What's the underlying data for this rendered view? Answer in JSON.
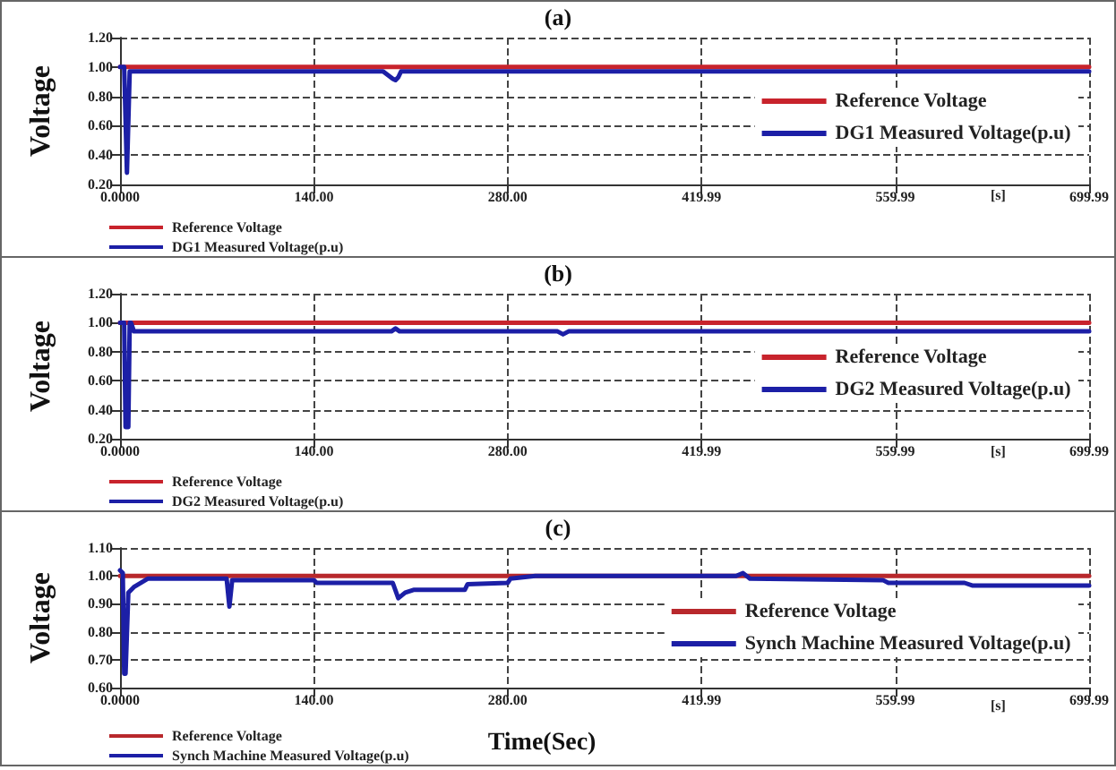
{
  "chart_data": [
    {
      "type": "line",
      "title": "(a)",
      "ylabel": "Voltage",
      "annotations": [
        "[s]"
      ],
      "xlim": [
        0,
        699.99
      ],
      "xticks": [
        {
          "value": 0,
          "label": "0.0000"
        },
        {
          "value": 140,
          "label": "140.00"
        },
        {
          "value": 280,
          "label": "280.00"
        },
        419.99,
        559.99,
        699.99
      ],
      "ylim": [
        0.2,
        1.2
      ],
      "yticks": [
        {
          "value": 0.2,
          "label": "0.20"
        },
        {
          "value": 0.4,
          "label": "0.40"
        },
        {
          "value": 0.6,
          "label": "0.60"
        },
        {
          "value": 0.8,
          "label": "0.80"
        },
        {
          "value": 1.0,
          "label": "1.00"
        },
        {
          "value": 1.2,
          "label": "1.20"
        }
      ],
      "grid": true,
      "legend": "right",
      "marker": "none",
      "line_style": "solid",
      "series": [
        {
          "name": "Reference Voltage",
          "color": "#c8232c",
          "x": [
            0,
            699.99
          ],
          "values": [
            1.0,
            1.0
          ]
        },
        {
          "name": "DG1 Measured Voltage(p.u)",
          "color": "#1c1fa6",
          "x": [
            0,
            3,
            5,
            7,
            10,
            190,
            197,
            199,
            201,
            203,
            699.99
          ],
          "values": [
            1.0,
            1.0,
            0.28,
            0.97,
            0.97,
            0.97,
            0.92,
            0.91,
            0.93,
            0.97,
            0.97
          ]
        }
      ]
    },
    {
      "type": "line",
      "title": "(b)",
      "ylabel": "Voltage",
      "annotations": [
        "[s]"
      ],
      "xlim": [
        0,
        699.99
      ],
      "xticks": [
        {
          "value": 0,
          "label": "0.0000"
        },
        {
          "value": 140,
          "label": "140.00"
        },
        {
          "value": 280,
          "label": "280.00"
        },
        419.99,
        559.99,
        699.99
      ],
      "ylim": [
        0.2,
        1.2
      ],
      "yticks": [
        {
          "value": 0.2,
          "label": "0.20"
        },
        {
          "value": 0.4,
          "label": "0.40"
        },
        {
          "value": 0.6,
          "label": "0.60"
        },
        {
          "value": 0.8,
          "label": "0.80"
        },
        {
          "value": 1.0,
          "label": "1.00"
        },
        {
          "value": 1.2,
          "label": "1.20"
        }
      ],
      "grid": true,
      "legend": "right",
      "marker": "none",
      "line_style": "solid",
      "series": [
        {
          "name": "Reference Voltage",
          "color": "#c8232c",
          "x": [
            0,
            699.99
          ],
          "values": [
            1.0,
            1.0
          ]
        },
        {
          "name": "DG2 Measured Voltage(p.u)",
          "color": "#1c1fa6",
          "x": [
            0,
            3,
            4,
            6,
            7,
            8,
            10,
            196,
            199,
            202,
            316,
            320,
            324,
            699.99
          ],
          "values": [
            1.0,
            1.0,
            0.28,
            0.28,
            1.0,
            1.0,
            0.94,
            0.94,
            0.96,
            0.94,
            0.94,
            0.92,
            0.94,
            0.94
          ]
        }
      ]
    },
    {
      "type": "line",
      "title": "(c)",
      "xlabel": "Time(Sec)",
      "ylabel": "Voltage",
      "annotations": [
        "[s]"
      ],
      "xlim": [
        0,
        699.99
      ],
      "xticks": [
        {
          "value": 0,
          "label": "0.0000"
        },
        {
          "value": 140,
          "label": "140.00"
        },
        {
          "value": 280,
          "label": "280.00"
        },
        419.99,
        559.99,
        699.99
      ],
      "ylim": [
        0.6,
        1.1
      ],
      "yticks": [
        {
          "value": 0.6,
          "label": "0.60"
        },
        {
          "value": 0.7,
          "label": "0.70"
        },
        {
          "value": 0.8,
          "label": "0.80"
        },
        {
          "value": 0.9,
          "label": "0.90"
        },
        {
          "value": 1.0,
          "label": "1.00"
        },
        {
          "value": 1.1,
          "label": "1.10"
        }
      ],
      "grid": true,
      "legend": "right",
      "marker": "none",
      "line_style": "solid",
      "series": [
        {
          "name": "Reference Voltage",
          "color": "#b8282c",
          "x": [
            0,
            699.99
          ],
          "values": [
            1.0,
            1.0
          ]
        },
        {
          "name": "Synch Machine Measured Voltage(p.u)",
          "color": "#1c1fa6",
          "x": [
            0,
            2,
            3,
            4,
            6,
            10,
            20,
            77,
            79,
            81,
            140,
            142,
            197,
            201,
            206,
            212,
            249,
            251,
            280,
            282,
            300,
            445,
            450,
            455,
            551,
            555,
            610,
            616,
            699.99
          ],
          "values": [
            1.02,
            1.01,
            0.65,
            0.65,
            0.94,
            0.96,
            0.99,
            0.99,
            0.89,
            0.985,
            0.985,
            0.975,
            0.975,
            0.92,
            0.94,
            0.95,
            0.95,
            0.97,
            0.975,
            0.99,
            1.0,
            1.0,
            1.01,
            0.99,
            0.985,
            0.975,
            0.975,
            0.965,
            0.965
          ]
        }
      ]
    }
  ]
}
